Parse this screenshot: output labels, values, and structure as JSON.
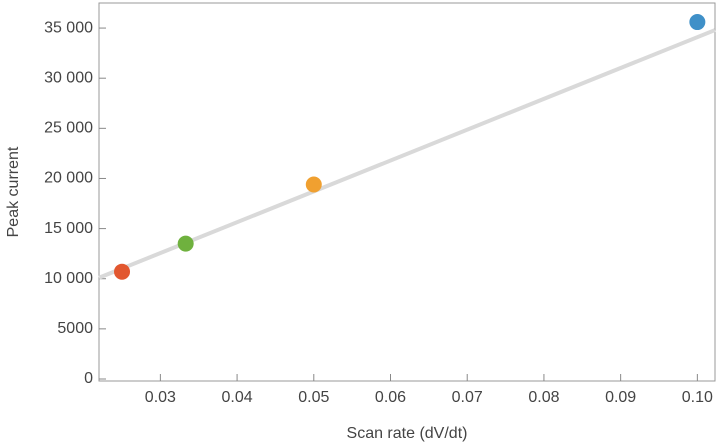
{
  "chart_data": {
    "type": "scatter",
    "x_label": "Scan rate (dV/dt)",
    "y_label": "Peak current",
    "x": [
      0.025,
      0.0333,
      0.05,
      0.1
    ],
    "values": [
      10700,
      13500,
      19400,
      35600
    ],
    "colors": [
      "#e2572f",
      "#6fb13e",
      "#f0a030",
      "#3f90c8"
    ],
    "fit_line": {
      "x": [
        0.022,
        0.1023
      ],
      "values": [
        10100,
        34800
      ],
      "color": "#d9d9d9"
    },
    "xlim": [
      0.022,
      0.1023
    ],
    "xticks": [
      0.03,
      0.04,
      0.05,
      0.06,
      0.07,
      0.08,
      0.09,
      {
        "value": 0.1,
        "label": "0.10"
      }
    ],
    "ylim": [
      -200,
      37500
    ],
    "yticks": [
      0,
      5000,
      {
        "value": 10000,
        "label": "10 000"
      },
      {
        "value": 15000,
        "label": "15 000"
      },
      {
        "value": 20000,
        "label": "20 000"
      },
      {
        "value": 25000,
        "label": "25 000"
      },
      {
        "value": 30000,
        "label": "30 000"
      },
      {
        "value": 35000,
        "label": "35 000"
      }
    ],
    "grid": false
  }
}
